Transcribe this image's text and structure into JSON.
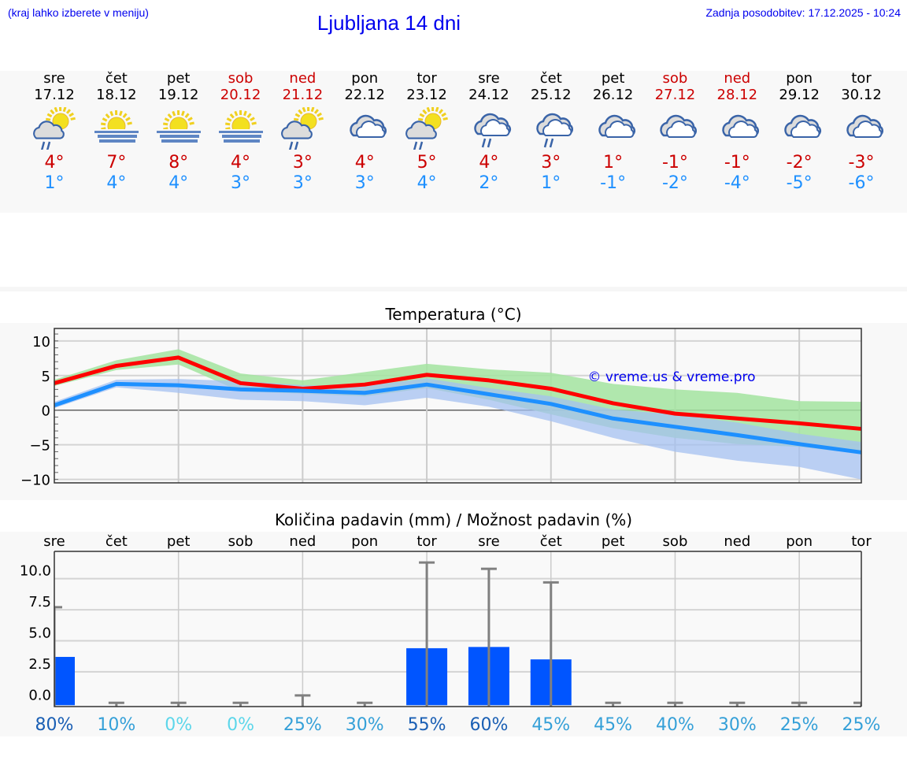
{
  "header": {
    "hint": "(kraj lahko izberete v meniju)",
    "title": "Ljubljana 14 dni",
    "updated": "Zadnja posodobitev: 17.12.2025 - 10:24"
  },
  "days": [
    {
      "name": "sre",
      "date": "17.12",
      "weekend": false,
      "icon": "sun-cloud-rain-icon",
      "max": "4°",
      "min": "1°"
    },
    {
      "name": "čet",
      "date": "18.12",
      "weekend": false,
      "icon": "sun-fog-icon",
      "max": "7°",
      "min": "4°"
    },
    {
      "name": "pet",
      "date": "19.12",
      "weekend": false,
      "icon": "sun-fog-icon",
      "max": "8°",
      "min": "4°"
    },
    {
      "name": "sob",
      "date": "20.12",
      "weekend": true,
      "icon": "sun-fog-icon",
      "max": "4°",
      "min": "3°"
    },
    {
      "name": "ned",
      "date": "21.12",
      "weekend": true,
      "icon": "sun-cloud-rain-icon",
      "max": "3°",
      "min": "3°"
    },
    {
      "name": "pon",
      "date": "22.12",
      "weekend": false,
      "icon": "cloudy-icon",
      "max": "4°",
      "min": "3°"
    },
    {
      "name": "tor",
      "date": "23.12",
      "weekend": false,
      "icon": "sun-cloud-rain-icon",
      "max": "5°",
      "min": "4°"
    },
    {
      "name": "sre",
      "date": "24.12",
      "weekend": false,
      "icon": "cloudy-rain-icon",
      "max": "4°",
      "min": "2°"
    },
    {
      "name": "čet",
      "date": "25.12",
      "weekend": false,
      "icon": "cloudy-rain-icon",
      "max": "3°",
      "min": "1°"
    },
    {
      "name": "pet",
      "date": "26.12",
      "weekend": false,
      "icon": "cloudy-icon",
      "max": "1°",
      "min": "-1°"
    },
    {
      "name": "sob",
      "date": "27.12",
      "weekend": true,
      "icon": "cloudy-icon",
      "max": "-1°",
      "min": "-2°"
    },
    {
      "name": "ned",
      "date": "28.12",
      "weekend": true,
      "icon": "cloudy-icon",
      "max": "-1°",
      "min": "-4°"
    },
    {
      "name": "pon",
      "date": "29.12",
      "weekend": false,
      "icon": "cloudy-icon",
      "max": "-2°",
      "min": "-5°"
    },
    {
      "name": "tor",
      "date": "30.12",
      "weekend": false,
      "icon": "cloudy-icon",
      "max": "-3°",
      "min": "-6°"
    }
  ],
  "colors": {
    "max": "#cc0000",
    "min": "#1e90ff",
    "weekend": "#cc0000",
    "link": "#0000ee"
  },
  "chart_data": [
    {
      "type": "line",
      "title": "Temperatura (°C)",
      "watermark": "© vreme.us & vreme.pro",
      "ylim": [
        -10.5,
        11.8
      ],
      "yticks": [
        {
          "v": 10,
          "label": "10"
        },
        {
          "v": 5,
          "label": "5"
        },
        {
          "v": 0,
          "label": "0"
        },
        {
          "v": -5,
          "label": "−5"
        },
        {
          "v": -10,
          "label": "−10"
        }
      ],
      "grid": true,
      "series": [
        {
          "color": "#ff0000",
          "values": [
            3.9,
            6.4,
            7.6,
            3.9,
            3.1,
            3.7,
            5.1,
            4.3,
            3.1,
            1.0,
            -0.5,
            -1.2,
            -1.9,
            -2.7
          ],
          "band_color": "#a3e4a0",
          "band_upper": [
            4.4,
            7.2,
            8.8,
            5.3,
            4.3,
            5.5,
            6.7,
            5.9,
            5.4,
            3.8,
            3.0,
            2.5,
            1.3,
            1.2
          ],
          "band_lower": [
            3.5,
            5.8,
            6.6,
            2.7,
            2.4,
            2.0,
            3.2,
            1.5,
            -0.6,
            -2.6,
            -4.0,
            -4.9,
            -5.3,
            -6.3
          ]
        },
        {
          "color": "#1e90ff",
          "values": [
            0.7,
            3.8,
            3.6,
            3.0,
            2.8,
            2.5,
            3.7,
            2.3,
            0.9,
            -1.2,
            -2.4,
            -3.6,
            -4.9,
            -6.1
          ],
          "band_color": "#a4c0f0",
          "band_upper": [
            1.2,
            4.4,
            4.5,
            4.2,
            3.6,
            3.5,
            4.6,
            3.2,
            2.0,
            0.1,
            -0.6,
            -1.8,
            -3.4,
            -4.6
          ],
          "band_lower": [
            0.3,
            3.3,
            2.5,
            1.5,
            1.3,
            0.7,
            1.8,
            0.5,
            -1.6,
            -4.0,
            -6.0,
            -7.3,
            -8.2,
            -10.0
          ]
        }
      ]
    },
    {
      "type": "bar",
      "title": "Količina padavin (mm) / Možnost padavin (%)",
      "categories": [
        "sre",
        "čet",
        "pet",
        "sob",
        "ned",
        "pon",
        "tor",
        "sre",
        "čet",
        "pet",
        "sob",
        "ned",
        "pon",
        "tor"
      ],
      "values": [
        3.7,
        0,
        0,
        0,
        0,
        0,
        4.4,
        4.5,
        3.5,
        0,
        0,
        0,
        0,
        0
      ],
      "error_upper": [
        7.7,
        0,
        0,
        0,
        0.6,
        0,
        11.3,
        10.8,
        9.7,
        0,
        0,
        0,
        0,
        0
      ],
      "ylim": [
        -0.3,
        12.2
      ],
      "yticks": [
        {
          "v": 0,
          "label": "0.0"
        },
        {
          "v": 2.5,
          "label": "2.5"
        },
        {
          "v": 5,
          "label": "5.0"
        },
        {
          "v": 7.5,
          "label": "7.5"
        },
        {
          "v": 10,
          "label": "10.0"
        }
      ],
      "bar_color": "#0055ff",
      "error_color": "#808080",
      "probability": [
        {
          "label": "80%",
          "color": "#1a5fb4"
        },
        {
          "label": "10%",
          "color": "#35a0d8"
        },
        {
          "label": "0%",
          "color": "#5cd6ea"
        },
        {
          "label": "0%",
          "color": "#5cd6ea"
        },
        {
          "label": "25%",
          "color": "#35a0d8"
        },
        {
          "label": "30%",
          "color": "#35a0d8"
        },
        {
          "label": "55%",
          "color": "#1a5fb4"
        },
        {
          "label": "60%",
          "color": "#1a5fb4"
        },
        {
          "label": "45%",
          "color": "#35a0d8"
        },
        {
          "label": "45%",
          "color": "#35a0d8"
        },
        {
          "label": "40%",
          "color": "#35a0d8"
        },
        {
          "label": "30%",
          "color": "#35a0d8"
        },
        {
          "label": "25%",
          "color": "#35a0d8"
        },
        {
          "label": "25%",
          "color": "#35a0d8"
        }
      ]
    }
  ]
}
